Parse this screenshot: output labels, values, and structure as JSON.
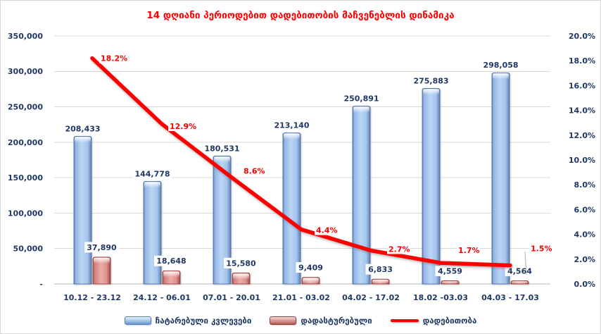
{
  "title": "14 დღიანი პერიოდებით დადებითობის მაჩვენებლის დინამიკა",
  "colors": {
    "title_text": "#FF0000",
    "axis_text": "#1F3864",
    "value_label_text": "#1F3864",
    "line_series": "#FE0000",
    "line_label_text": "#FF0000",
    "bar_tests_fill": "#9DC3E6",
    "bar_tests_border": "#3F66A0",
    "bar_confirmed_fill": "#D99694",
    "bar_confirmed_border": "#8E3734",
    "gridline": "#D9D9D9",
    "axis_line": "#B7B7B7"
  },
  "chart_data": {
    "type": "bar",
    "subtype": "combo-bar-line",
    "title": "14 დღიანი პერიოდებით დადებითობის მაჩვენებლის დინამიკა",
    "categories": [
      "10.12 - 23.12",
      "24.12 - 06.01",
      "07.01 - 20.01",
      "21.01 - 03.02",
      "04.02 - 17.02",
      "18.02 -03.03",
      "04.03 - 17.03"
    ],
    "series": [
      {
        "name": "ჩატარებული კვლევები",
        "type": "bar",
        "axis": "left",
        "values": [
          208433,
          144778,
          180531,
          213140,
          250891,
          275883,
          298058
        ],
        "value_labels": [
          "208,433",
          "144,778",
          "180,531",
          "213,140",
          "250,891",
          "275,883",
          "298,058"
        ]
      },
      {
        "name": "დადასტურებული",
        "type": "bar",
        "axis": "left",
        "values": [
          37890,
          18648,
          15580,
          9409,
          6833,
          4559,
          4564
        ],
        "value_labels": [
          "37,890",
          "18,648",
          "15,580",
          "9,409",
          "6,833",
          "4,559",
          "4,564"
        ]
      },
      {
        "name": "დადებითობა",
        "type": "line",
        "axis": "right",
        "values": [
          18.2,
          12.9,
          8.6,
          4.4,
          2.7,
          1.7,
          1.5
        ],
        "value_labels": [
          "18.2%",
          "12.9%",
          "8.6%",
          "4.4%",
          "2.7%",
          "1.7%",
          "1.5%"
        ]
      }
    ],
    "left_axis": {
      "min": 0,
      "max": 350000,
      "step": 50000,
      "tick_labels": [
        "350,000",
        "300,000",
        "250,000",
        "200,000",
        "150,000",
        "100,000",
        "50,000",
        "-"
      ]
    },
    "right_axis": {
      "min": 0,
      "max": 20,
      "step": 2,
      "tick_labels": [
        "20.0%",
        "18.0%",
        "16.0%",
        "14.0%",
        "12.0%",
        "10.0%",
        "8.0%",
        "6.0%",
        "4.0%",
        "2.0%",
        "0.0%"
      ]
    },
    "grid": true,
    "legend_position": "bottom"
  }
}
